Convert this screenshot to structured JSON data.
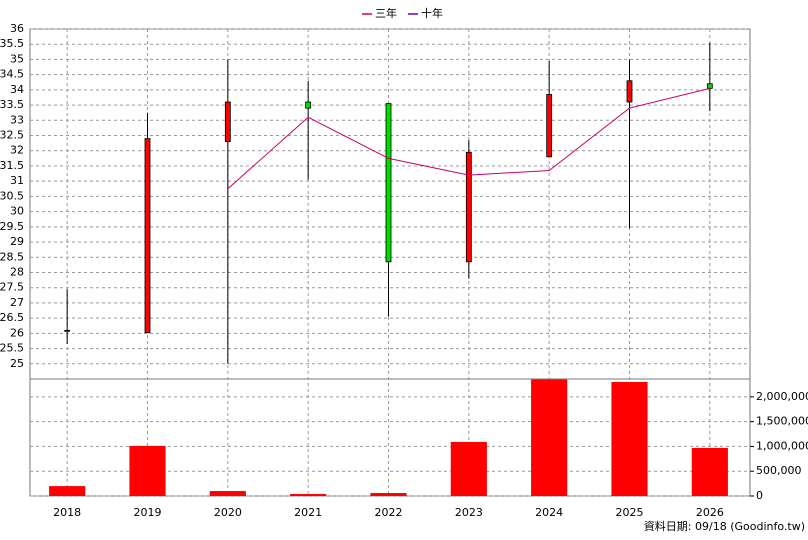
{
  "chart_data": {
    "type": "candlestick",
    "categories": [
      "2018",
      "2019",
      "2020",
      "2021",
      "2022",
      "2023",
      "2024",
      "2025",
      "2026"
    ],
    "open": [
      26.1,
      26.02,
      32.3,
      33.6,
      33.55,
      28.35,
      31.8,
      33.6,
      34.2
    ],
    "high": [
      27.45,
      33.25,
      35.0,
      34.3,
      33.55,
      32.35,
      34.95,
      35.0,
      35.55
    ],
    "low": [
      25.65,
      26.02,
      25.0,
      31.05,
      26.55,
      27.8,
      31.8,
      29.45,
      33.3
    ],
    "close": [
      26.1,
      32.4,
      33.6,
      33.4,
      28.35,
      31.95,
      33.85,
      34.3,
      34.05
    ],
    "up_color": "#ff0000",
    "down_color": "#00dd00",
    "ylim": [
      24.5,
      36
    ],
    "yticks": [
      25,
      25.5,
      26,
      26.5,
      27,
      27.5,
      28,
      28.5,
      29,
      29.5,
      30,
      30.5,
      31,
      31.5,
      32,
      32.5,
      33,
      33.5,
      34,
      34.5,
      35,
      35.5,
      36
    ],
    "grid": true,
    "legend": "top",
    "lines": [
      {
        "name": "三年",
        "color": "#cc0066",
        "values": [
          null,
          null,
          30.75,
          33.1,
          31.75,
          31.2,
          31.35,
          33.4,
          34.05
        ]
      },
      {
        "name": "十年",
        "color": "#6600cc",
        "values": [
          null,
          null,
          null,
          null,
          null,
          null,
          null,
          null,
          null
        ]
      }
    ],
    "volume": {
      "type": "bar",
      "color": "#ff0000",
      "values": [
        200000,
        1010000,
        100000,
        40000,
        60000,
        1090000,
        2350000,
        2300000,
        970000
      ],
      "ylim": [
        0,
        2360000
      ],
      "yticks": [
        0,
        {
          "value": 500000,
          "label": "500,000"
        },
        {
          "value": 1000000,
          "label": "1,000,000"
        },
        {
          "value": 1500000,
          "label": "1,500,000"
        },
        {
          "value": 2000000,
          "label": "2,000,000"
        }
      ]
    },
    "footer": "資料日期: 09/18  (Goodinfo.tw)"
  }
}
